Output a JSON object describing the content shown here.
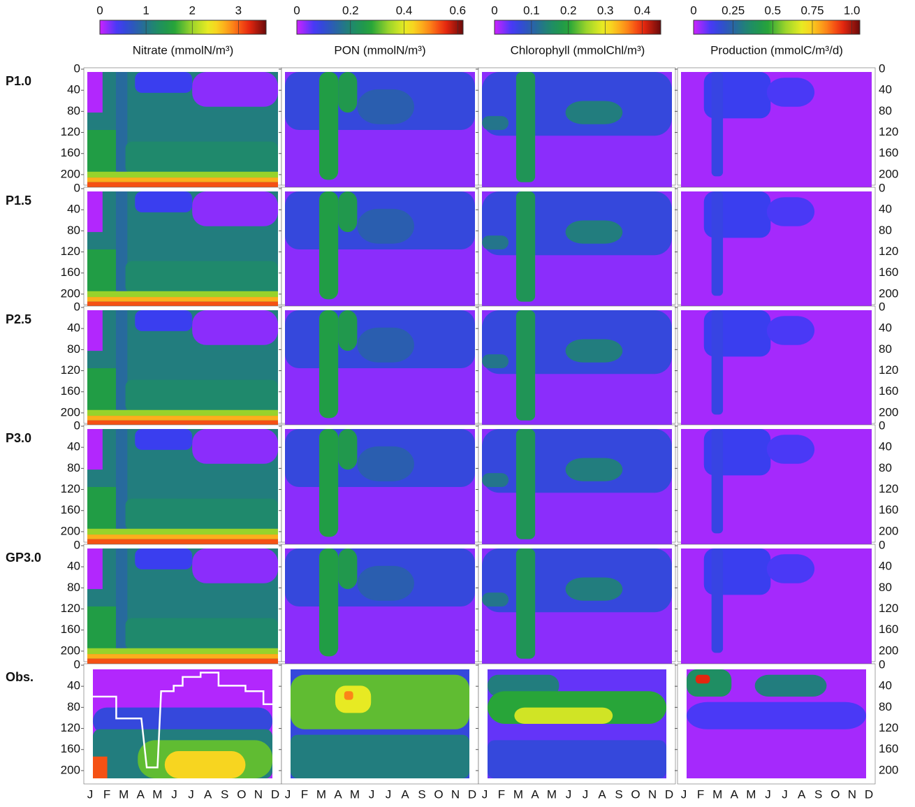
{
  "colorbars": [
    {
      "label": "Nitrate (mmolN/m³)",
      "lim": [
        0,
        3.6
      ],
      "ticks": [
        0,
        1,
        2,
        3
      ]
    },
    {
      "label": "PON (mmolN/m³)",
      "lim": [
        0,
        0.62
      ],
      "ticks": [
        0,
        0.2,
        0.4,
        0.6
      ]
    },
    {
      "label": "Chlorophyll (mmolChl/m³)",
      "lim": [
        0,
        0.45
      ],
      "ticks": [
        0,
        0.1,
        0.2,
        0.3,
        0.4
      ]
    },
    {
      "label": "Production (mmolC/m³/d)",
      "lim": [
        0,
        1.05
      ],
      "ticks": [
        0,
        0.25,
        0.5,
        0.75,
        {
          "value": 1,
          "label": "1.0"
        }
      ]
    }
  ],
  "rows": [
    "P1.0",
    "P1.5",
    "P2.5",
    "P3.0",
    "GP3.0",
    "Obs."
  ],
  "depth_lim": [
    0,
    220
  ],
  "depth_ticks": [
    0,
    40,
    80,
    120,
    160,
    200
  ],
  "months": [
    "J",
    "F",
    "M",
    "A",
    "M",
    "J",
    "J",
    "A",
    "S",
    "O",
    "N",
    "D"
  ]
}
